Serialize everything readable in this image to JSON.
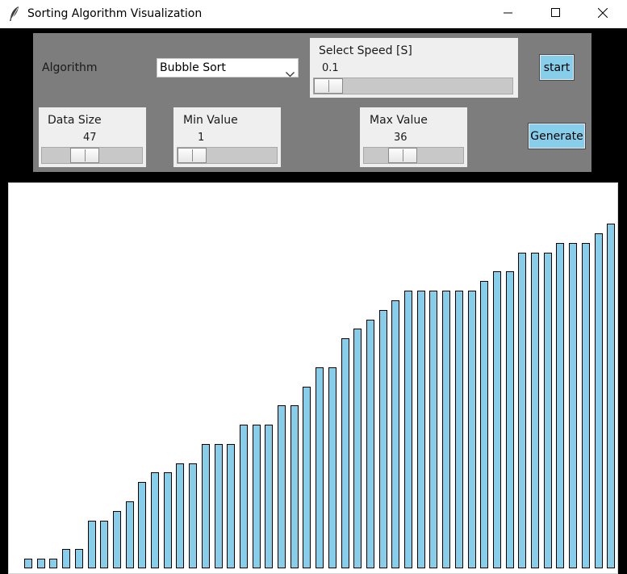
{
  "window": {
    "title": "Sorting Algorithm Visualization",
    "app_icon": "feather-icon",
    "minimize_icon": "minimize-icon",
    "maximize_icon": "maximize-icon",
    "close_icon": "close-icon"
  },
  "controls": {
    "algorithm_label": "Algorithm",
    "algorithm_selected": "Bubble Sort",
    "speed": {
      "label": "Select Speed [S]",
      "value": "0.1",
      "level": 0.0
    },
    "start_label": "start",
    "data_size": {
      "label": "Data Size",
      "value": "47",
      "level": 0.4
    },
    "min_value": {
      "label": "Min Value",
      "value": "1",
      "level": 0.0
    },
    "max_value": {
      "label": "Max Value",
      "value": "36",
      "level": 0.35
    },
    "generate_label": "Generate"
  },
  "colors": {
    "panel_background": "#7d7d7d",
    "button_color": "#87ceeb",
    "bar_fill": "#87ceeb",
    "bar_outline": "#000000"
  },
  "chart_data": {
    "type": "bar",
    "values": [
      1,
      1,
      1,
      2,
      2,
      5,
      5,
      6,
      7,
      9,
      10,
      10,
      11,
      11,
      13,
      13,
      13,
      15,
      15,
      15,
      17,
      17,
      19,
      21,
      21,
      24,
      25,
      26,
      27,
      28,
      29,
      29,
      29,
      29,
      29,
      29,
      30,
      31,
      31,
      33,
      33,
      33,
      34,
      34,
      34,
      35,
      36
    ],
    "ylim": [
      0,
      36
    ]
  }
}
